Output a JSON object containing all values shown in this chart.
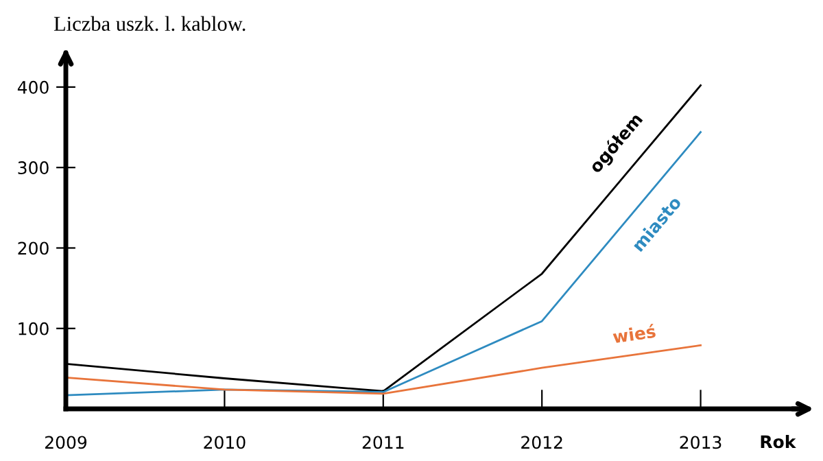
{
  "chart_data": {
    "type": "line",
    "title": "Liczba uszk. l. kablow.",
    "xlabel": "Rok",
    "x": [
      2009,
      2010,
      2011,
      2012,
      2013
    ],
    "series": [
      {
        "name": "ogółem",
        "color": "#000000",
        "values": [
          56,
          38,
          22,
          168,
          402
        ]
      },
      {
        "name": "miasto",
        "color": "#2e8bc0",
        "values": [
          17,
          24,
          21,
          109,
          344
        ]
      },
      {
        "name": "wieś",
        "color": "#e8743b",
        "values": [
          39,
          24,
          19,
          51,
          79
        ]
      }
    ],
    "xlim": [
      2009,
      2013.6
    ],
    "ylim": [
      0,
      440
    ],
    "xticks": [
      2009,
      2010,
      2011,
      2012,
      2013
    ],
    "yticks": [
      100,
      200,
      300,
      400
    ],
    "grid": false,
    "legend": false,
    "marker": "none",
    "line_style": "solid"
  }
}
